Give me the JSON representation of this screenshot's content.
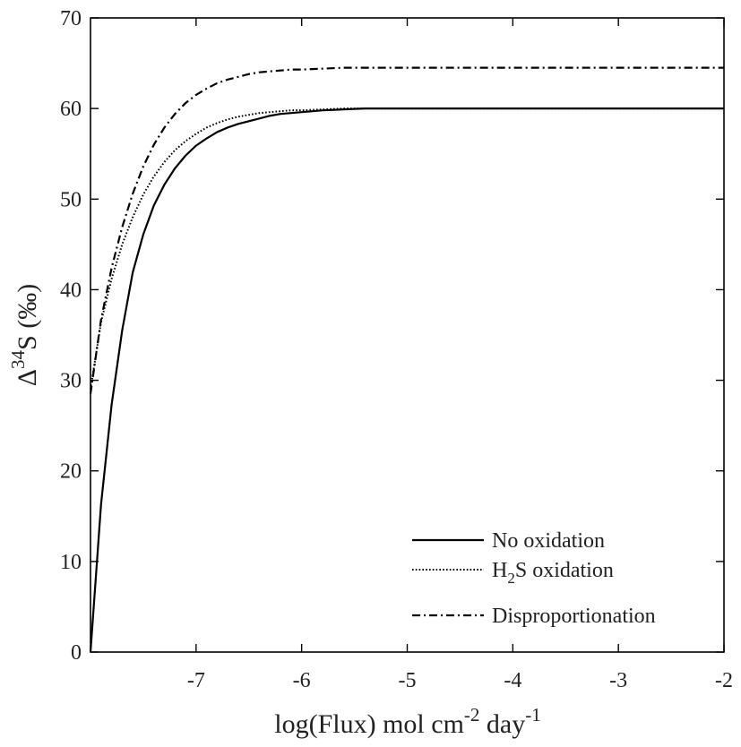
{
  "chart_data": {
    "type": "line",
    "xlabel": "log(Flux) mol cm",
    "xlabel_sup1": "-2",
    "xlabel_mid": " day",
    "xlabel_sup2": "-1",
    "ylabel": "Δ",
    "ylabel_sup": "34",
    "ylabel_rest": "S (‰)",
    "xlim": [
      -8,
      -2
    ],
    "ylim": [
      0,
      70
    ],
    "xticks": [
      -7,
      -6,
      -5,
      -4,
      -3,
      -2
    ],
    "yticks": [
      0,
      10,
      20,
      30,
      40,
      50,
      60,
      70
    ],
    "grid": false,
    "legend_position": "bottom-right",
    "series": [
      {
        "name": "No oxidation",
        "name_parts": [
          "No oxidation"
        ],
        "style": "solid",
        "x": [
          -8.0,
          -7.9,
          -7.8,
          -7.7,
          -7.6,
          -7.5,
          -7.4,
          -7.3,
          -7.2,
          -7.1,
          -7.0,
          -6.9,
          -6.8,
          -6.7,
          -6.6,
          -6.5,
          -6.4,
          -6.3,
          -6.2,
          -6.1,
          -6.0,
          -5.8,
          -5.6,
          -5.4,
          -5.2,
          -5.0,
          -4.5,
          -4.0,
          -3.0,
          -2.0
        ],
        "y": [
          0.0,
          16.3,
          27.3,
          35.5,
          41.9,
          46.1,
          49.3,
          51.6,
          53.4,
          54.8,
          55.9,
          56.7,
          57.4,
          57.9,
          58.3,
          58.6,
          58.9,
          59.2,
          59.4,
          59.5,
          59.6,
          59.8,
          59.9,
          60.0,
          60.0,
          60.0,
          60.0,
          60.0,
          60.0,
          60.0
        ]
      },
      {
        "name": "H2S oxidation",
        "name_parts": [
          "H",
          "2",
          "S oxidation"
        ],
        "style": "dotted",
        "x": [
          -8.0,
          -7.9,
          -7.8,
          -7.7,
          -7.6,
          -7.5,
          -7.4,
          -7.3,
          -7.2,
          -7.1,
          -7.0,
          -6.9,
          -6.8,
          -6.7,
          -6.6,
          -6.5,
          -6.4,
          -6.3,
          -6.2,
          -6.1,
          -6.0,
          -5.8,
          -5.6,
          -5.4,
          -5.2,
          -5.0,
          -4.5,
          -4.0,
          -3.0,
          -2.0
        ],
        "y": [
          29.0,
          36.4,
          41.2,
          45.0,
          48.0,
          50.5,
          52.5,
          54.1,
          55.4,
          56.4,
          57.2,
          57.9,
          58.4,
          58.8,
          59.1,
          59.3,
          59.5,
          59.6,
          59.7,
          59.8,
          59.8,
          59.9,
          60.0,
          60.0,
          60.0,
          60.0,
          60.0,
          60.0,
          60.0,
          60.0
        ]
      },
      {
        "name": "Disproportionation",
        "name_parts": [
          "Disproportionation"
        ],
        "style": "dashdot",
        "x": [
          -8.0,
          -7.9,
          -7.8,
          -7.7,
          -7.6,
          -7.5,
          -7.4,
          -7.3,
          -7.2,
          -7.1,
          -7.0,
          -6.9,
          -6.8,
          -6.7,
          -6.6,
          -6.5,
          -6.4,
          -6.3,
          -6.2,
          -6.1,
          -6.0,
          -5.8,
          -5.6,
          -5.4,
          -5.2,
          -5.0,
          -4.5,
          -4.0,
          -3.0,
          -2.0
        ],
        "y": [
          28.5,
          36.7,
          42.4,
          46.9,
          50.6,
          53.6,
          56.0,
          57.9,
          59.4,
          60.6,
          61.5,
          62.2,
          62.8,
          63.2,
          63.5,
          63.8,
          64.0,
          64.1,
          64.2,
          64.3,
          64.3,
          64.4,
          64.5,
          64.5,
          64.5,
          64.5,
          64.5,
          64.5,
          64.5,
          64.5
        ]
      }
    ]
  }
}
